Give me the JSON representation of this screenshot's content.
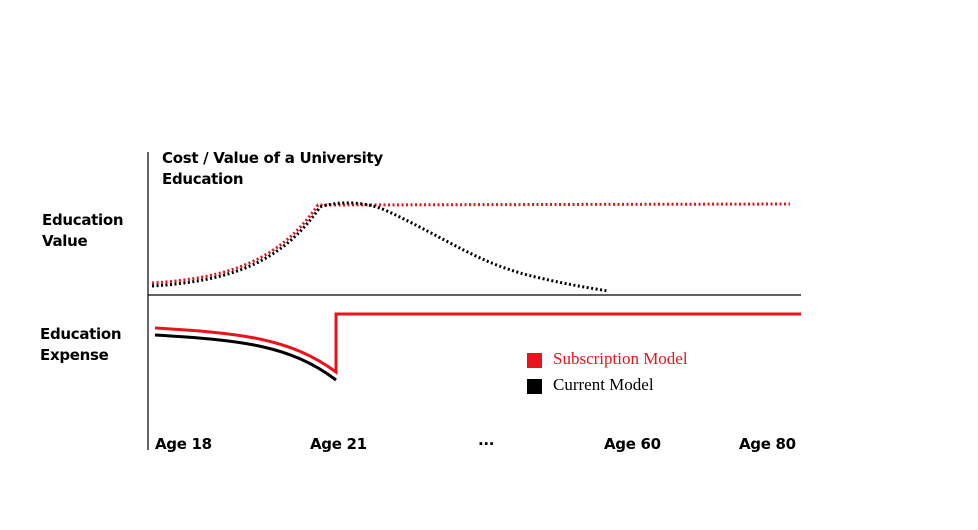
{
  "title": "Cost / Value of a University Education",
  "y_labels": {
    "value": "Education Value",
    "expense": "Education Expense"
  },
  "x_labels": [
    "Age 18",
    "Age 21",
    "...",
    "Age 60",
    "Age 80"
  ],
  "legend": [
    {
      "label": "Subscription Model",
      "color": "#e8141b"
    },
    {
      "label": "Current Model",
      "color": "#000000"
    }
  ]
}
